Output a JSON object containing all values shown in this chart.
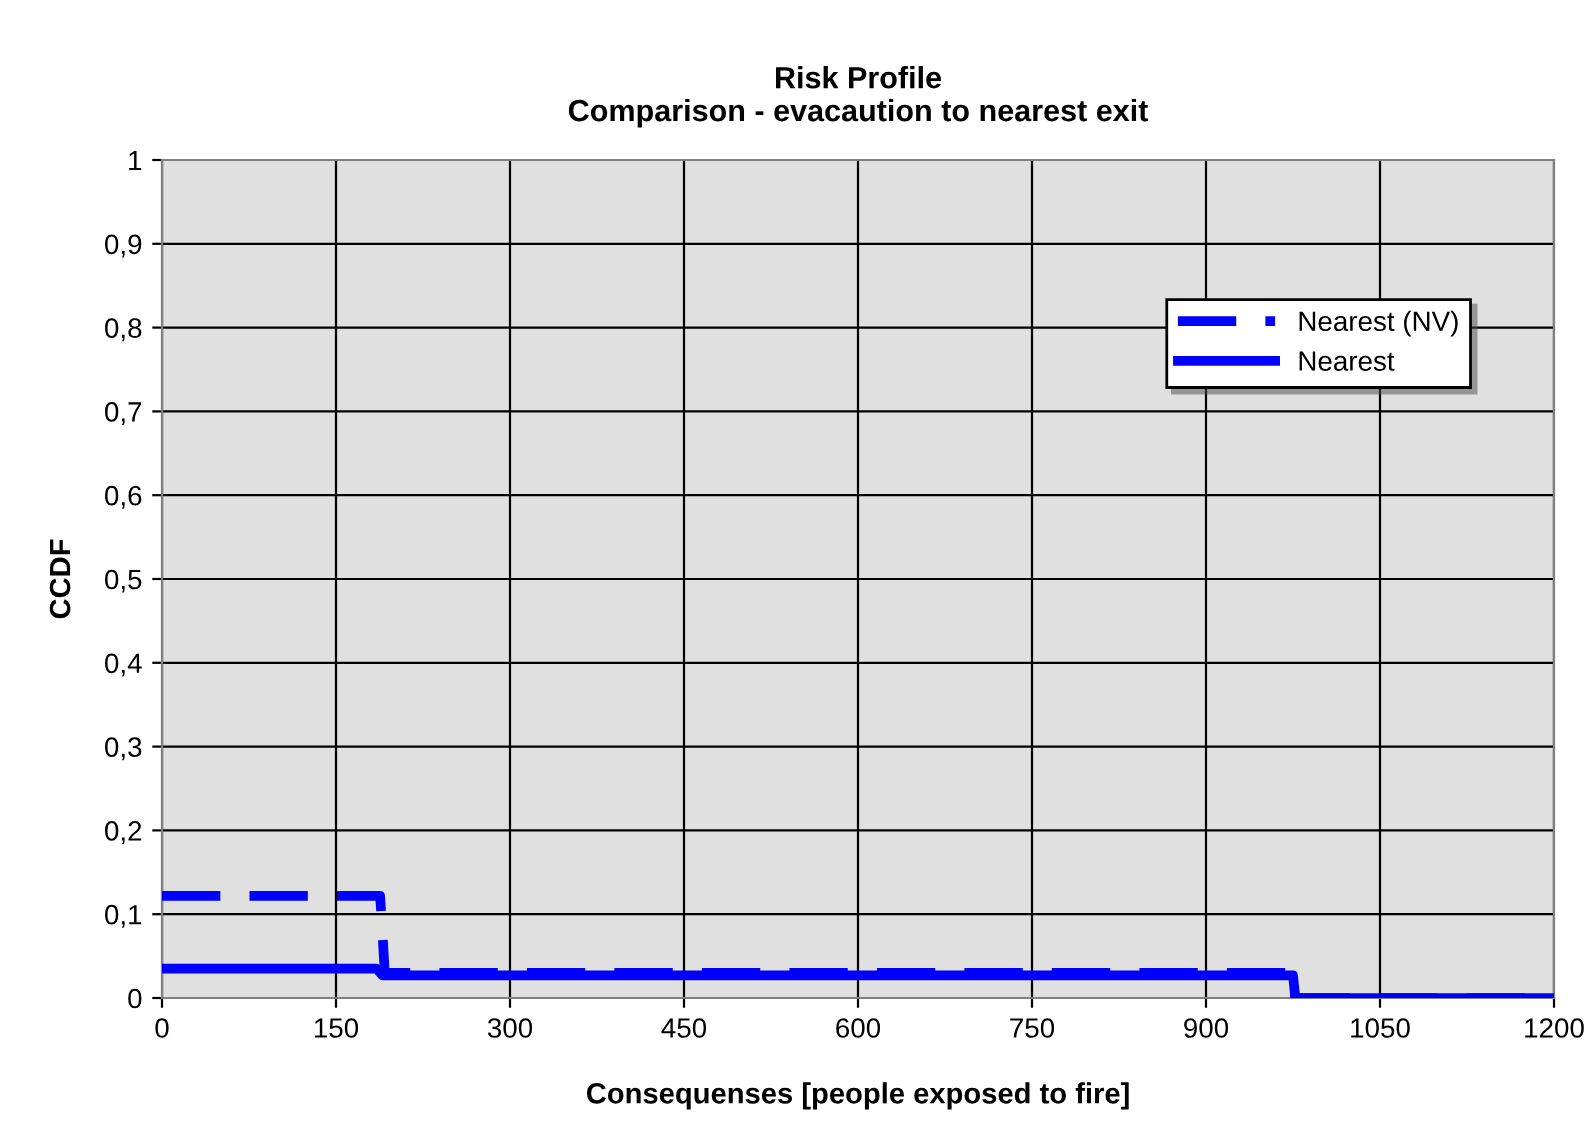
{
  "chart_data": {
    "type": "line",
    "title": "Risk Profile\nComparison - evacaution to nearest exit",
    "xlabel": "Consequenses [people exposed to fire]",
    "ylabel": "CCDF",
    "series": [
      {
        "name": "Nearest (NV)",
        "color": "#0000ff",
        "line_style": "dashed",
        "x": [
          0,
          188,
          190,
          192,
          975,
          977,
          1200
        ],
        "values": [
          0.122,
          0.122,
          0.08,
          0.03,
          0.03,
          0,
          0
        ]
      },
      {
        "name": "Nearest",
        "color": "#0000ff",
        "line_style": "solid",
        "x": [
          0,
          185,
          190,
          975,
          977,
          1200
        ],
        "values": [
          0.035,
          0.035,
          0.027,
          0.027,
          0,
          0
        ]
      }
    ],
    "xlim": [
      0,
      1200
    ],
    "xticks": [
      0,
      150,
      300,
      450,
      600,
      750,
      900,
      1050,
      1200
    ],
    "ylim": [
      0,
      1
    ],
    "yticks": [
      0,
      {
        "value": 0.1,
        "label": "0,1"
      },
      {
        "value": 0.2,
        "label": "0,2"
      },
      {
        "value": 0.3,
        "label": "0,3"
      },
      {
        "value": 0.4,
        "label": "0,4"
      },
      {
        "value": 0.5,
        "label": "0,5"
      },
      {
        "value": 0.6,
        "label": "0,6"
      },
      {
        "value": 0.7,
        "label": "0,7"
      },
      {
        "value": 0.8,
        "label": "0,8"
      },
      {
        "value": 0.9,
        "label": "0,9"
      },
      1
    ],
    "grid": true,
    "legend": "top right",
    "marker": "none"
  }
}
